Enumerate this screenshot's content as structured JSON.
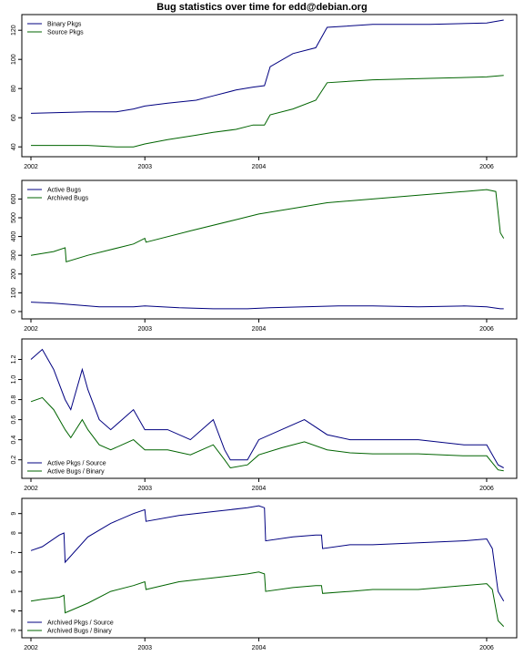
{
  "page": {
    "title": "Bug statistics over time for edd@debian.org"
  },
  "colors": {
    "blue": "#000080",
    "green": "#006400",
    "axis": "#000000",
    "bg": "#ffffff"
  },
  "chart_data": [
    {
      "type": "line",
      "title": "",
      "xlabel": "",
      "ylabel": "",
      "x_ticks": [
        2002,
        2003,
        2004,
        2006
      ],
      "x_tick_labels": [
        "2002",
        "2003",
        "2004",
        "2006"
      ],
      "xlim": [
        2002.0,
        2006.2
      ],
      "y_ticks": [
        40,
        60,
        80,
        100,
        120
      ],
      "y_tick_labels": [
        "40",
        "60",
        "80",
        "100",
        "120"
      ],
      "ylim": [
        37,
        127
      ],
      "grid": false,
      "legend": "top-left",
      "series": [
        {
          "name": "Binary Pkgs",
          "color": "blue",
          "x": [
            2002.0,
            2002.5,
            2002.75,
            2002.9,
            2003.0,
            2003.2,
            2003.45,
            2003.6,
            2003.8,
            2003.95,
            2004.05,
            2004.1,
            2004.3,
            2004.5,
            2004.6,
            2005.0,
            2005.5,
            2006.0,
            2006.15
          ],
          "y": [
            63,
            64,
            64,
            66,
            68,
            70,
            72,
            75,
            79,
            81,
            82,
            95,
            104,
            108,
            122,
            124,
            124,
            125,
            127
          ]
        },
        {
          "name": "Source Pkgs",
          "color": "green",
          "x": [
            2002.0,
            2002.5,
            2002.75,
            2002.9,
            2003.0,
            2003.2,
            2003.45,
            2003.6,
            2003.8,
            2003.95,
            2004.05,
            2004.1,
            2004.3,
            2004.5,
            2004.6,
            2005.0,
            2005.5,
            2006.0,
            2006.15
          ],
          "y": [
            41,
            41,
            40,
            40,
            42,
            45,
            48,
            50,
            52,
            55,
            55,
            62,
            66,
            72,
            84,
            86,
            87,
            88,
            89
          ]
        }
      ]
    },
    {
      "type": "line",
      "title": "",
      "xlabel": "",
      "ylabel": "",
      "x_ticks": [
        2002,
        2003,
        2004,
        2006
      ],
      "x_tick_labels": [
        "2002",
        "2003",
        "2004",
        "2006"
      ],
      "xlim": [
        2002.0,
        2006.2
      ],
      "y_ticks": [
        0,
        100,
        200,
        300,
        400,
        500,
        600
      ],
      "y_tick_labels": [
        "0",
        "100",
        "200",
        "300",
        "400",
        "500",
        "600"
      ],
      "ylim": [
        -10,
        670
      ],
      "grid": false,
      "legend": "top-left",
      "series": [
        {
          "name": "Active Bugs",
          "color": "blue",
          "x": [
            2002.0,
            2002.2,
            2002.4,
            2002.6,
            2002.9,
            2003.0,
            2003.3,
            2003.6,
            2003.9,
            2004.1,
            2004.4,
            2004.7,
            2005.0,
            2005.4,
            2005.8,
            2006.0,
            2006.12,
            2006.15
          ],
          "y": [
            50,
            45,
            35,
            25,
            25,
            30,
            20,
            15,
            15,
            20,
            25,
            30,
            30,
            25,
            30,
            25,
            15,
            15
          ]
        },
        {
          "name": "Archived Bugs",
          "color": "green",
          "x": [
            2002.0,
            2002.2,
            2002.3,
            2002.31,
            2002.5,
            2002.9,
            2003.0,
            2003.01,
            2003.4,
            2003.8,
            2004.0,
            2004.3,
            2004.6,
            2005.0,
            2005.4,
            2005.8,
            2006.0,
            2006.08,
            2006.12,
            2006.15
          ],
          "y": [
            300,
            320,
            340,
            265,
            300,
            360,
            390,
            370,
            430,
            490,
            520,
            550,
            580,
            600,
            620,
            640,
            650,
            640,
            420,
            390
          ]
        }
      ]
    },
    {
      "type": "line",
      "title": "",
      "xlabel": "",
      "ylabel": "",
      "x_ticks": [
        2002,
        2003,
        2004,
        2006
      ],
      "x_tick_labels": [
        "2002",
        "2003",
        "2004",
        "2006"
      ],
      "xlim": [
        2002.0,
        2006.2
      ],
      "y_ticks": [
        0.2,
        0.4,
        0.6,
        0.8,
        1.0,
        1.2
      ],
      "y_tick_labels": [
        "0.2",
        "0.4",
        "0.6",
        "0.8",
        "1.0",
        "1.2"
      ],
      "ylim": [
        0.07,
        1.35
      ],
      "grid": false,
      "legend": "bottom-left",
      "series": [
        {
          "name": "Active Pkgs / Source",
          "color": "blue",
          "x": [
            2002.0,
            2002.1,
            2002.2,
            2002.3,
            2002.35,
            2002.45,
            2002.5,
            2002.6,
            2002.7,
            2002.8,
            2002.9,
            2003.0,
            2003.2,
            2003.4,
            2003.6,
            2003.7,
            2003.75,
            2003.9,
            2004.0,
            2004.2,
            2004.4,
            2004.6,
            2004.8,
            2005.0,
            2005.4,
            2005.8,
            2006.0,
            2006.1,
            2006.15
          ],
          "y": [
            1.2,
            1.3,
            1.1,
            0.8,
            0.7,
            1.1,
            0.9,
            0.6,
            0.5,
            0.6,
            0.7,
            0.5,
            0.5,
            0.4,
            0.6,
            0.3,
            0.2,
            0.2,
            0.4,
            0.5,
            0.6,
            0.45,
            0.4,
            0.4,
            0.4,
            0.35,
            0.35,
            0.15,
            0.12
          ]
        },
        {
          "name": "Active Bugs / Binary",
          "color": "green",
          "x": [
            2002.0,
            2002.1,
            2002.2,
            2002.3,
            2002.35,
            2002.45,
            2002.5,
            2002.6,
            2002.7,
            2002.8,
            2002.9,
            2003.0,
            2003.2,
            2003.4,
            2003.6,
            2003.7,
            2003.75,
            2003.9,
            2004.0,
            2004.2,
            2004.4,
            2004.6,
            2004.8,
            2005.0,
            2005.4,
            2005.8,
            2006.0,
            2006.1,
            2006.15
          ],
          "y": [
            0.78,
            0.82,
            0.7,
            0.5,
            0.42,
            0.6,
            0.5,
            0.35,
            0.3,
            0.35,
            0.4,
            0.3,
            0.3,
            0.25,
            0.35,
            0.2,
            0.12,
            0.15,
            0.25,
            0.32,
            0.38,
            0.3,
            0.27,
            0.26,
            0.26,
            0.24,
            0.24,
            0.1,
            0.09
          ]
        }
      ]
    },
    {
      "type": "line",
      "title": "",
      "xlabel": "",
      "ylabel": "",
      "x_ticks": [
        2002,
        2003,
        2004,
        2006
      ],
      "x_tick_labels": [
        "2002",
        "2003",
        "2004",
        "2006"
      ],
      "xlim": [
        2002.0,
        2006.2
      ],
      "y_ticks": [
        3,
        4,
        5,
        6,
        7,
        8,
        9
      ],
      "y_tick_labels": [
        "3",
        "4",
        "5",
        "6",
        "7",
        "8",
        "9"
      ],
      "ylim": [
        2.9,
        9.5
      ],
      "grid": false,
      "legend": "bottom-left",
      "series": [
        {
          "name": "Archived Pkgs / Source",
          "color": "blue",
          "x": [
            2002.0,
            2002.1,
            2002.25,
            2002.29,
            2002.3,
            2002.5,
            2002.7,
            2002.9,
            2003.0,
            2003.01,
            2003.3,
            2003.6,
            2003.9,
            2004.0,
            2004.05,
            2004.06,
            2004.3,
            2004.5,
            2004.55,
            2004.56,
            2004.8,
            2005.0,
            2005.4,
            2005.8,
            2006.0,
            2006.05,
            2006.1,
            2006.15
          ],
          "y": [
            7.1,
            7.3,
            7.9,
            8.0,
            6.5,
            7.8,
            8.5,
            9.0,
            9.2,
            8.6,
            8.9,
            9.1,
            9.3,
            9.4,
            9.3,
            7.6,
            7.8,
            7.9,
            7.9,
            7.2,
            7.4,
            7.4,
            7.5,
            7.6,
            7.7,
            7.2,
            5.0,
            4.5
          ]
        },
        {
          "name": "Archived Bugs / Binary",
          "color": "green",
          "x": [
            2002.0,
            2002.1,
            2002.25,
            2002.29,
            2002.3,
            2002.5,
            2002.7,
            2002.9,
            2003.0,
            2003.01,
            2003.3,
            2003.6,
            2003.9,
            2004.0,
            2004.05,
            2004.06,
            2004.3,
            2004.5,
            2004.55,
            2004.56,
            2004.8,
            2005.0,
            2005.4,
            2005.8,
            2006.0,
            2006.05,
            2006.1,
            2006.15
          ],
          "y": [
            4.5,
            4.6,
            4.7,
            4.8,
            3.9,
            4.4,
            5.0,
            5.3,
            5.5,
            5.1,
            5.5,
            5.7,
            5.9,
            6.0,
            5.9,
            5.0,
            5.2,
            5.3,
            5.3,
            4.9,
            5.0,
            5.1,
            5.1,
            5.3,
            5.4,
            5.1,
            3.5,
            3.2
          ]
        }
      ]
    }
  ]
}
